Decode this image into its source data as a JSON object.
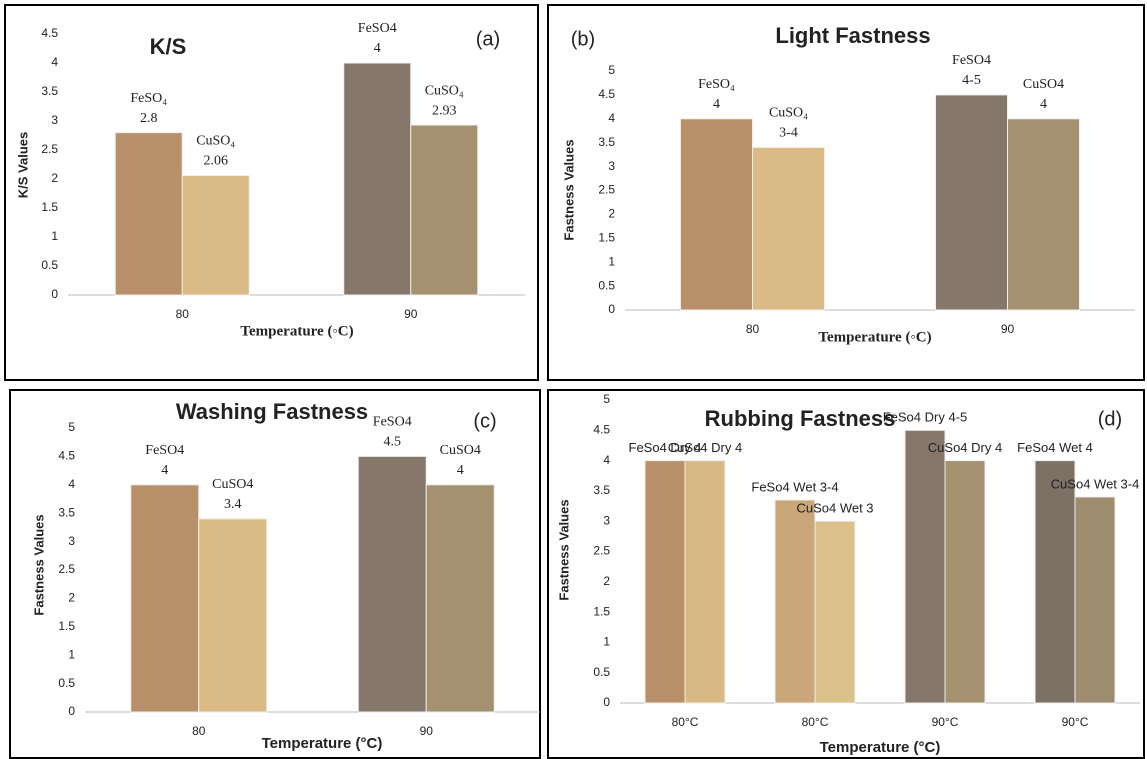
{
  "chart_data": [
    {
      "type": "bar",
      "title": "K/S",
      "panel_label": "(a)",
      "y_label": "K/S Values",
      "x_label": "Temperature (◦C)",
      "categories": [
        "80",
        "90"
      ],
      "ylim": [
        0,
        4.5
      ],
      "yticks": [
        0,
        0.5,
        1,
        1.5,
        2,
        2.5,
        3,
        3.5,
        4,
        4.5
      ],
      "series": [
        {
          "colors": [
            "#b8916a",
            "#857769"
          ],
          "values": [
            2.8,
            4
          ],
          "point_labels": [
            "FeSO₄",
            "FeSO4"
          ]
        },
        {
          "colors": [
            "#dbbb85",
            "#a3916f"
          ],
          "values": [
            2.06,
            2.93
          ],
          "point_labels": [
            "CuSO₄",
            "CuSO₄"
          ]
        }
      ]
    },
    {
      "type": "bar",
      "title": "Light Fastness",
      "panel_label": "(b)",
      "y_label": "Fastness Values",
      "x_label": "Temperature (◦C)",
      "categories": [
        "80",
        "90"
      ],
      "ylim": [
        0,
        5
      ],
      "yticks": [
        0,
        0.5,
        1,
        1.5,
        2,
        2.5,
        3,
        3.5,
        4,
        4.5,
        5
      ],
      "series": [
        {
          "colors": [
            "#b8916a",
            "#857769"
          ],
          "values": [
            4,
            4.5
          ],
          "value_labels": [
            "4",
            "4-5"
          ],
          "point_labels": [
            "FeSO₄",
            "FeSO4"
          ]
        },
        {
          "colors": [
            "#dbbb85",
            "#a3916f"
          ],
          "values": [
            3.4,
            4
          ],
          "value_labels": [
            "3-4",
            "4"
          ],
          "point_labels": [
            "CuSO₄",
            "CuSO4"
          ]
        }
      ]
    },
    {
      "type": "bar",
      "title": "Washing Fastness",
      "panel_label": "(c)",
      "y_label": "Fastness Values",
      "x_label": "Temperature (°C)",
      "categories": [
        "80",
        "90"
      ],
      "ylim": [
        0,
        5
      ],
      "yticks": [
        0,
        0.5,
        1,
        1.5,
        2,
        2.5,
        3,
        3.5,
        4,
        4.5,
        5
      ],
      "series": [
        {
          "colors": [
            "#b8916a",
            "#857769"
          ],
          "values": [
            4,
            4.5
          ],
          "point_labels": [
            "FeSO4",
            "FeSO4"
          ]
        },
        {
          "colors": [
            "#dbbb85",
            "#a3916f"
          ],
          "values": [
            3.4,
            4
          ],
          "point_labels": [
            "CuSO4",
            "CuSO4"
          ]
        }
      ]
    },
    {
      "type": "bar",
      "title": "Rubbing Fastness",
      "panel_label": "(d)",
      "y_label": "Fastness Values",
      "x_label": "Temperature (°C)",
      "categories": [
        "80°C",
        "80°C",
        "90°C",
        "90°C"
      ],
      "ylim": [
        0,
        5
      ],
      "yticks": [
        0,
        0.5,
        1,
        1.5,
        2,
        2.5,
        3,
        3.5,
        4,
        4.5,
        5
      ],
      "series": [
        {
          "colors": [
            "#b8916a",
            "#c9a77a",
            "#857769",
            "#7d7166"
          ],
          "values": [
            4,
            3.35,
            4.5,
            4
          ],
          "value_labels": [
            "FeSo4 Dry 4",
            "FeSo4 Wet 3-4",
            "FeSo4 Dry 4-5",
            "FeSo4 Wet 4"
          ]
        },
        {
          "colors": [
            "#d9b983",
            "#dcc08a",
            "#a3916f",
            "#9d8c6e"
          ],
          "values": [
            4,
            3,
            4,
            3.4
          ],
          "value_labels": [
            "CuSo4 Dry 4",
            "CuSo4 Wet 3",
            "CuSo4 Dry 4",
            "CuSo4 Wet 3-4"
          ]
        }
      ]
    }
  ]
}
